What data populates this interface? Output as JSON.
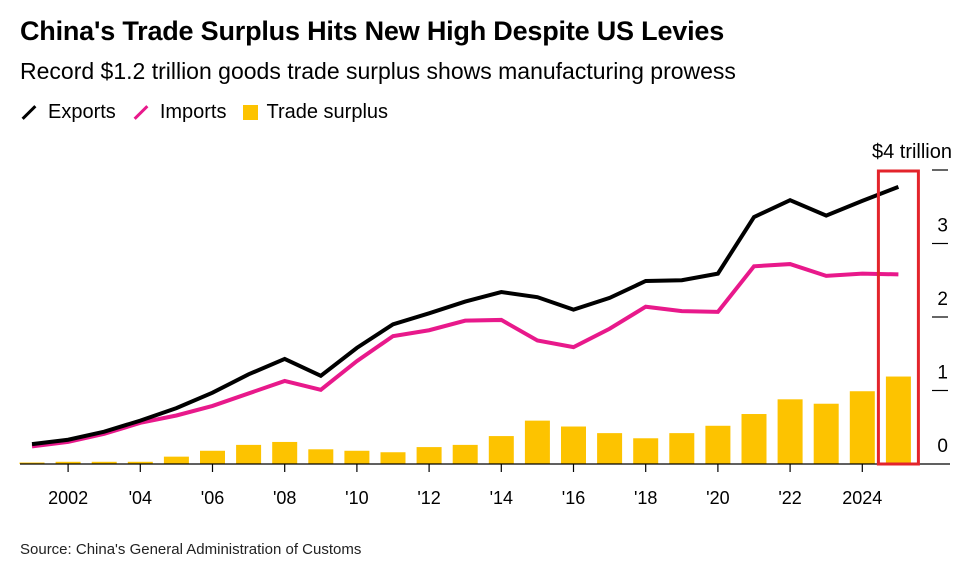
{
  "header": {
    "title": "China's Trade Surplus Hits New High Despite US Levies",
    "subtitle": "Record $1.2 trillion goods trade surplus shows manufacturing prowess"
  },
  "source": "Source: China's General Administration of Customs",
  "colors": {
    "exports": "#000000",
    "imports": "#e8198b",
    "surplus": "#fdc300",
    "highlight": "#e3242b"
  },
  "chart_data": {
    "type": "line+bar",
    "title": "China's Trade Surplus Hits New High Despite US Levies",
    "subtitle": "Record $1.2 trillion goods trade surplus shows manufacturing prowess",
    "xlabel": "",
    "ylabel": "",
    "unit_label": "$4 trillion",
    "ylim": [
      0,
      4
    ],
    "yticks": [
      0,
      1,
      2,
      3,
      4
    ],
    "ytick_labels": [
      "0",
      "1",
      "2",
      "3",
      "$4 trillion"
    ],
    "x": [
      2001,
      2002,
      2003,
      2004,
      2005,
      2006,
      2007,
      2008,
      2009,
      2010,
      2011,
      2012,
      2013,
      2014,
      2015,
      2016,
      2017,
      2018,
      2019,
      2020,
      2021,
      2022,
      2023,
      2024,
      2025
    ],
    "xticks": [
      2002,
      2004,
      2006,
      2008,
      2010,
      2012,
      2014,
      2016,
      2018,
      2020,
      2022,
      2024
    ],
    "xtick_labels": [
      "2002",
      "'04",
      "'06",
      "'08",
      "'10",
      "'12",
      "'14",
      "'16",
      "'18",
      "'20",
      "'22",
      "2024"
    ],
    "legend_position": "top-left",
    "grid": false,
    "highlight_year": 2025,
    "series": [
      {
        "name": "Exports",
        "type": "line",
        "values": [
          0.27,
          0.33,
          0.44,
          0.59,
          0.76,
          0.97,
          1.22,
          1.43,
          1.2,
          1.58,
          1.9,
          2.05,
          2.21,
          2.34,
          2.27,
          2.1,
          2.26,
          2.49,
          2.5,
          2.59,
          3.36,
          3.59,
          3.38,
          3.58,
          3.77
        ]
      },
      {
        "name": "Imports",
        "type": "line",
        "values": [
          0.24,
          0.3,
          0.41,
          0.56,
          0.66,
          0.79,
          0.96,
          1.13,
          1.01,
          1.4,
          1.74,
          1.82,
          1.95,
          1.96,
          1.68,
          1.59,
          1.84,
          2.14,
          2.08,
          2.07,
          2.69,
          2.72,
          2.56,
          2.59,
          2.58
        ]
      },
      {
        "name": "Trade surplus",
        "type": "bar",
        "values": [
          0.02,
          0.03,
          0.03,
          0.03,
          0.1,
          0.18,
          0.26,
          0.3,
          0.2,
          0.18,
          0.16,
          0.23,
          0.26,
          0.38,
          0.59,
          0.51,
          0.42,
          0.35,
          0.42,
          0.52,
          0.68,
          0.88,
          0.82,
          0.99,
          1.19
        ]
      }
    ]
  }
}
